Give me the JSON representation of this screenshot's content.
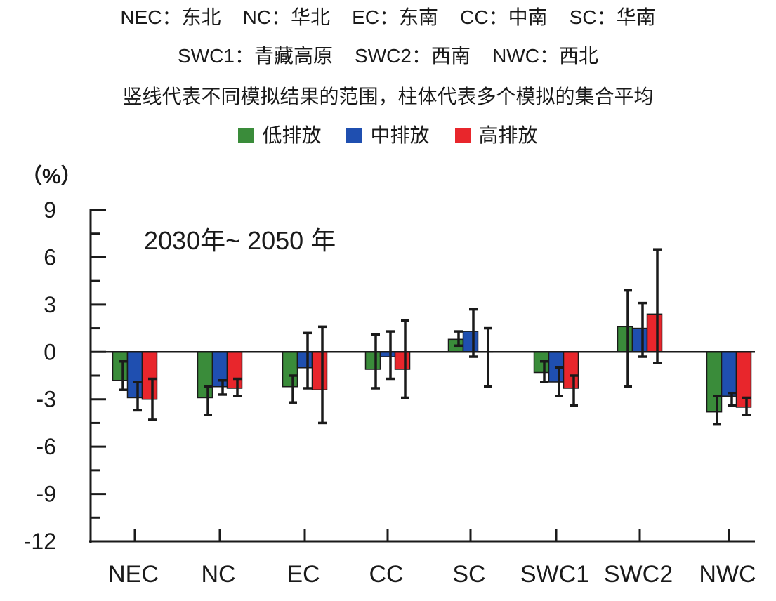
{
  "header": {
    "line1": "NEC：东北    NC：华北    EC：东南    CC：中南    SC：华南",
    "line2": "SWC1：青藏高原    SWC2：西南    NWC：西北",
    "line3": "竖线代表不同模拟结果的范围，柱体代表多个模拟的集合平均"
  },
  "chart_data": {
    "type": "bar",
    "unit_label": "（%）",
    "annotation": "2030年~ 2050 年",
    "categories": [
      "NEC",
      "NC",
      "EC",
      "CC",
      "SC",
      "SWC1",
      "SWC2",
      "NWC"
    ],
    "ylim": [
      -12,
      9
    ],
    "yticks": [
      9,
      6,
      3,
      0,
      -3,
      -6,
      -9,
      -12
    ],
    "ytick_labels": [
      "9",
      "6",
      "3",
      "0",
      "-3",
      "-6",
      "-9",
      "-12"
    ],
    "legend_position": "top-center",
    "series": [
      {
        "name": "低排放",
        "color": "#3a8c3a",
        "values": [
          -1.8,
          -2.9,
          -2.2,
          -1.1,
          0.8,
          -1.3,
          1.6,
          -3.8
        ],
        "err_low": [
          -2.4,
          -4.0,
          -3.2,
          -2.3,
          0.4,
          -1.9,
          -2.2,
          -4.6
        ],
        "err_high": [
          -0.6,
          -2.2,
          -1.5,
          1.1,
          1.3,
          -0.6,
          3.9,
          -2.8
        ]
      },
      {
        "name": "中排放",
        "color": "#1f4fb0",
        "values": [
          -2.9,
          -2.2,
          -1.0,
          -0.3,
          1.3,
          -1.9,
          1.5,
          -2.8
        ],
        "err_low": [
          -3.7,
          -2.7,
          -2.3,
          -1.7,
          -0.3,
          -2.8,
          -0.3,
          -3.4
        ],
        "err_high": [
          -1.9,
          -1.8,
          1.2,
          1.3,
          2.7,
          -1.0,
          3.1,
          -2.6
        ]
      },
      {
        "name": "高排放",
        "color": "#e8262c",
        "values": [
          -3.0,
          -2.3,
          -2.4,
          -1.1,
          0.0,
          -2.3,
          2.4,
          -3.5
        ],
        "err_low": [
          -4.3,
          -2.8,
          -4.5,
          -2.9,
          -2.2,
          -3.4,
          -0.7,
          -4.0
        ],
        "err_high": [
          -1.7,
          -1.7,
          1.6,
          2.0,
          1.5,
          -1.5,
          6.5,
          -2.9
        ]
      }
    ]
  }
}
